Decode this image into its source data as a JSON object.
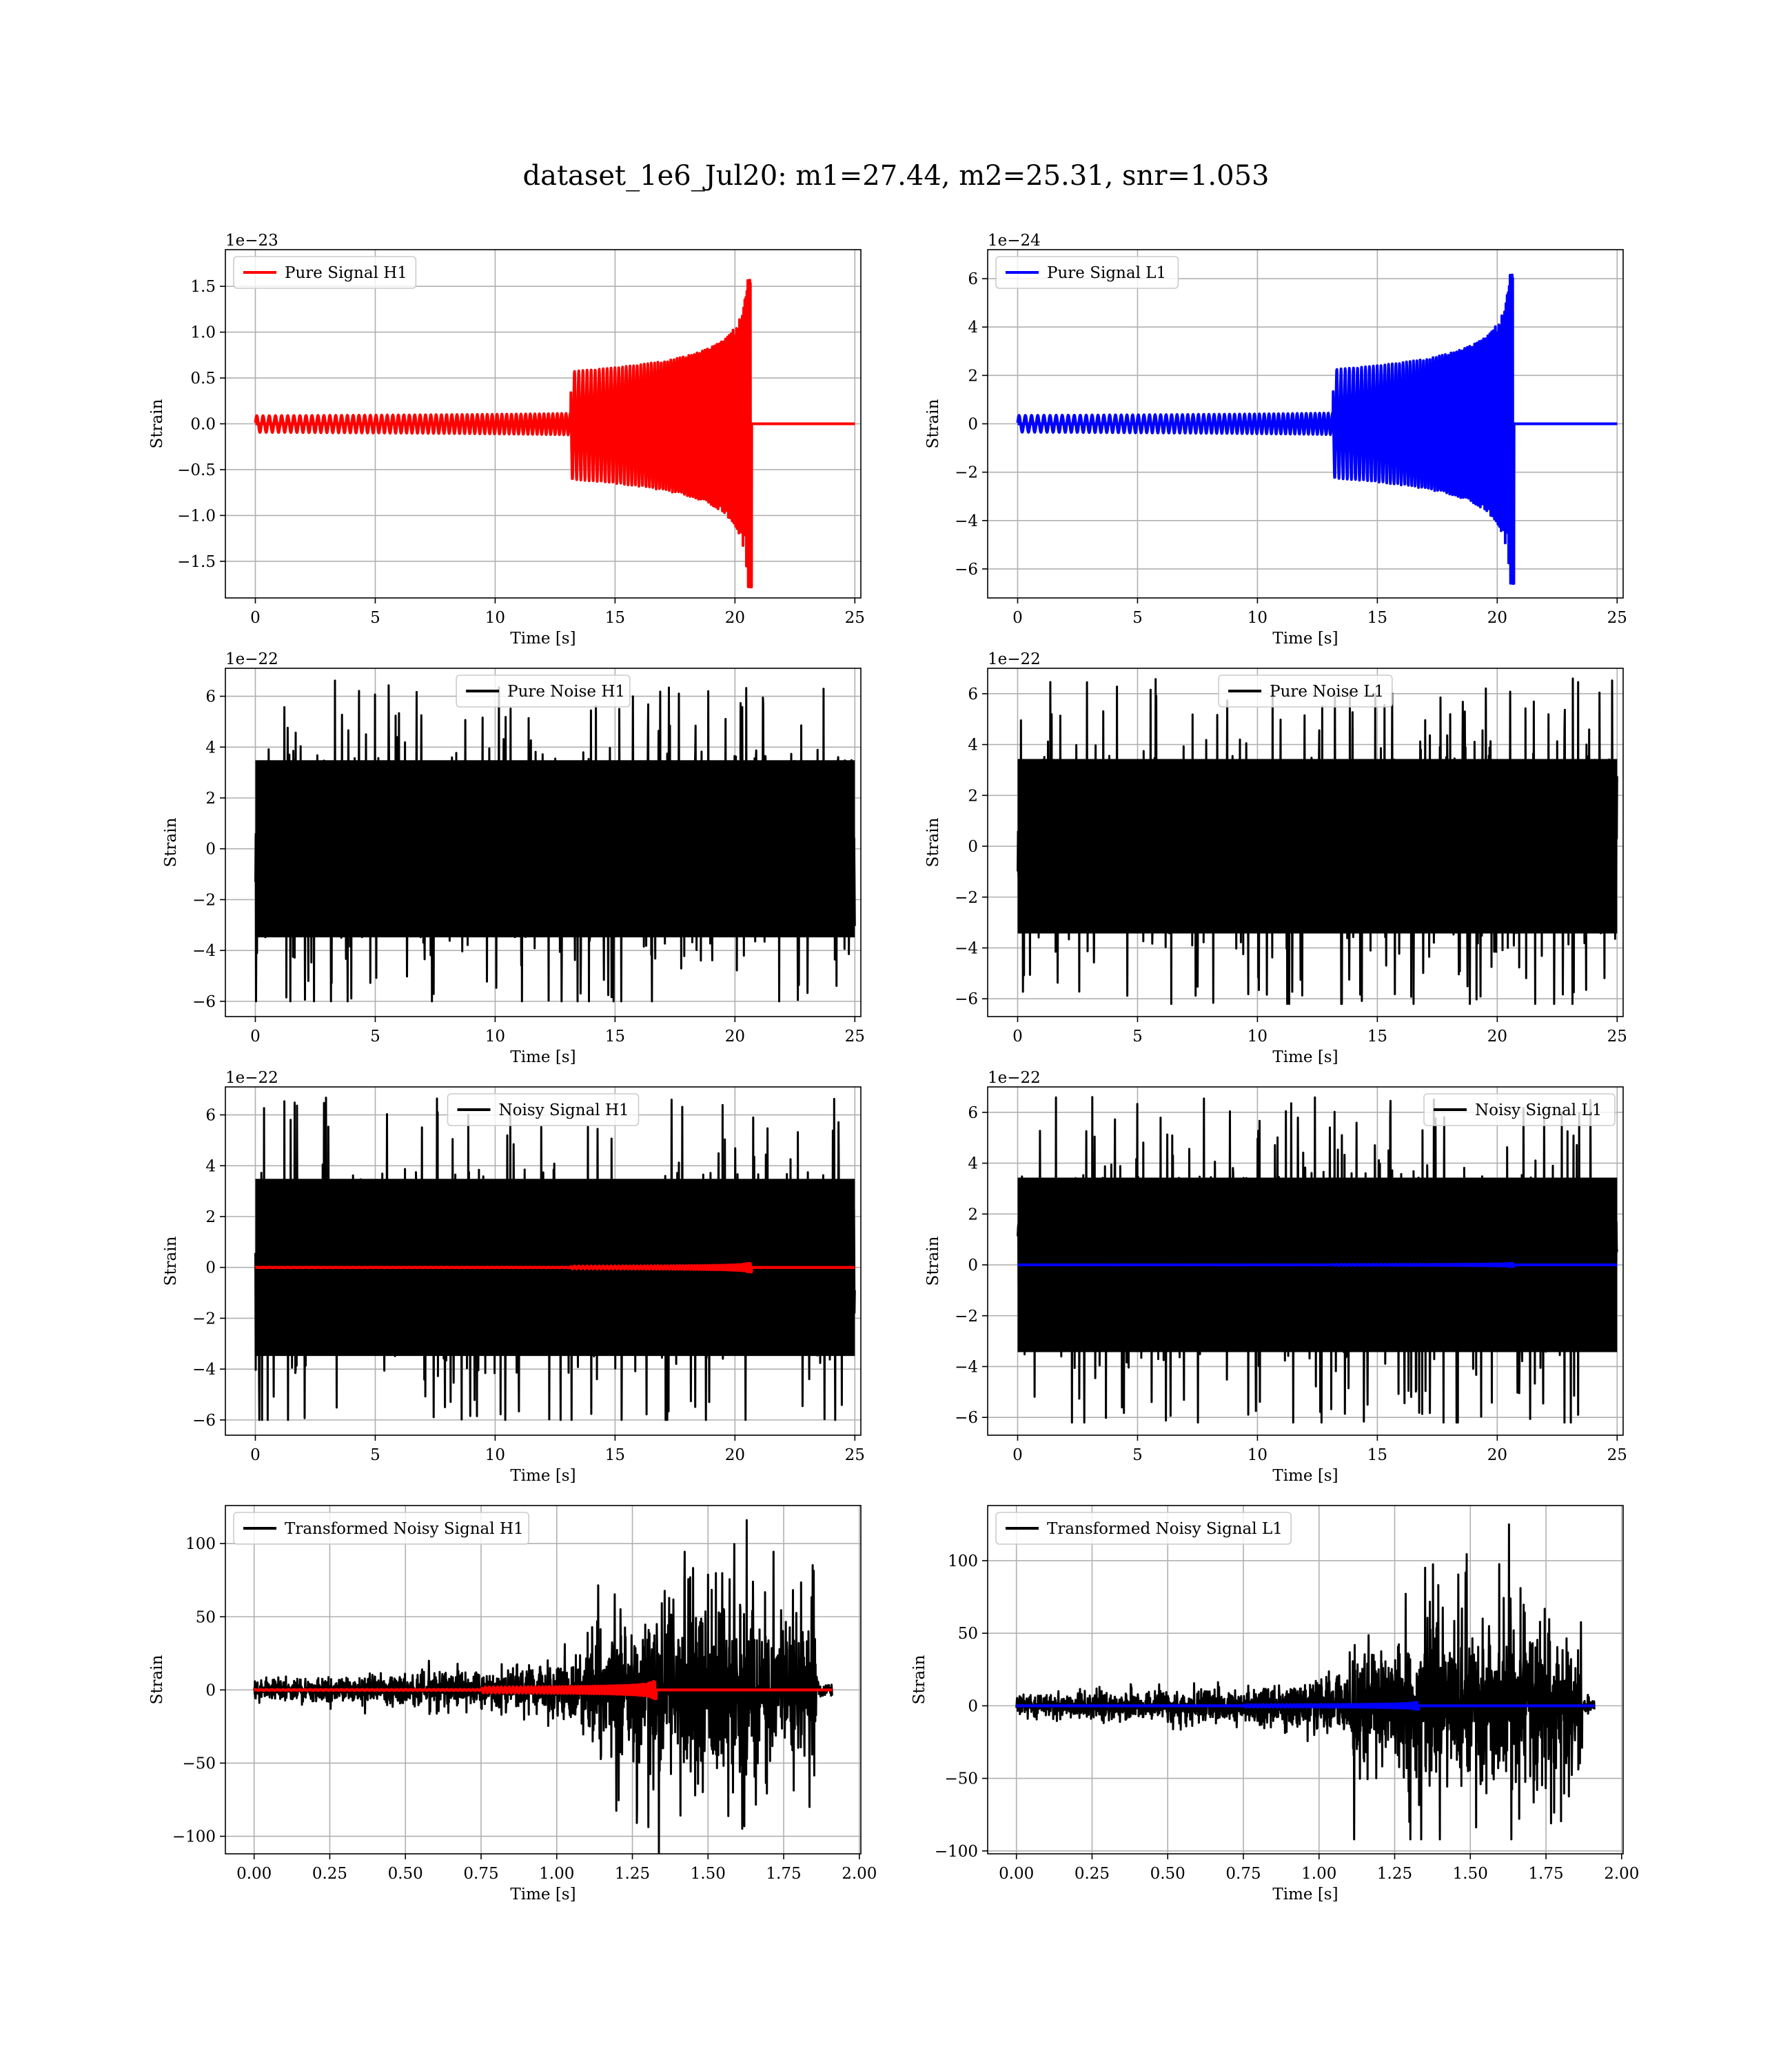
{
  "figure": {
    "title": "dataset_1e6_Jul20: m1=27.44, m2=25.31, snr=1.053"
  },
  "chart_data": [
    {
      "type": "line",
      "id": "pure-signal-h1",
      "ylabel": "Strain",
      "xlabel": "Time [s]",
      "exponent": "1e−23",
      "xlim": [
        -1.25,
        25.25
      ],
      "ylim": [
        -1.9,
        1.9
      ],
      "xticks": [
        0,
        5,
        10,
        15,
        20,
        25
      ],
      "yticks": [
        -1.5,
        -1.0,
        -0.5,
        0.0,
        0.5,
        1.0,
        1.5
      ],
      "ytick_labels": [
        "−1.5",
        "−1.0",
        "−0.5",
        "0.0",
        "0.5",
        "1.0",
        "1.5"
      ],
      "grid": true,
      "legend_position": "upper left",
      "series": [
        {
          "name": "Pure Signal H1",
          "color": "#ff0000",
          "signal": "chirp",
          "t_range": [
            0,
            25
          ],
          "merger": 20.65,
          "peak_pos": 1.68,
          "peak_neg": -1.78,
          "legend": true
        }
      ]
    },
    {
      "type": "line",
      "id": "pure-signal-l1",
      "ylabel": "Strain",
      "xlabel": "Time [s]",
      "exponent": "1e−24",
      "xlim": [
        -1.25,
        25.25
      ],
      "ylim": [
        -7.2,
        7.2
      ],
      "xticks": [
        0,
        5,
        10,
        15,
        20,
        25
      ],
      "yticks": [
        -6,
        -4,
        -2,
        0,
        2,
        4,
        6
      ],
      "ytick_labels": [
        "−6",
        "−4",
        "−2",
        "0",
        "2",
        "4",
        "6"
      ],
      "grid": true,
      "legend_position": "upper left",
      "series": [
        {
          "name": "Pure Signal L1",
          "color": "#0000ff",
          "signal": "chirp",
          "t_range": [
            0,
            25
          ],
          "merger": 20.65,
          "peak_pos": 6.6,
          "peak_neg": -6.6,
          "legend": true
        }
      ]
    },
    {
      "type": "line",
      "id": "pure-noise-h1",
      "ylabel": "Strain",
      "xlabel": "Time [s]",
      "exponent": "1e−22",
      "xlim": [
        -1.25,
        25.25
      ],
      "ylim": [
        -6.6,
        7.1
      ],
      "xticks": [
        0,
        5,
        10,
        15,
        20,
        25
      ],
      "yticks": [
        -6,
        -4,
        -2,
        0,
        2,
        4,
        6
      ],
      "ytick_labels": [
        "−6",
        "−4",
        "−2",
        "0",
        "2",
        "4",
        "6"
      ],
      "grid": true,
      "legend_position": "upper center",
      "series": [
        {
          "name": "Pure Noise H1",
          "color": "#000000",
          "signal": "noise",
          "t_range": [
            0,
            25
          ],
          "spread": 1.0,
          "max": 6.7,
          "min": -6.0,
          "legend": true
        }
      ]
    },
    {
      "type": "line",
      "id": "pure-noise-l1",
      "ylabel": "Strain",
      "xlabel": "Time [s]",
      "exponent": "1e−22",
      "xlim": [
        -1.25,
        25.25
      ],
      "ylim": [
        -6.7,
        7.0
      ],
      "xticks": [
        0,
        5,
        10,
        15,
        20,
        25
      ],
      "yticks": [
        -6,
        -4,
        -2,
        0,
        2,
        4,
        6
      ],
      "ytick_labels": [
        "−6",
        "−4",
        "−2",
        "0",
        "2",
        "4",
        "6"
      ],
      "grid": true,
      "legend_position": "upper center",
      "series": [
        {
          "name": "Pure Noise L1",
          "color": "#000000",
          "signal": "noise",
          "t_range": [
            0,
            25
          ],
          "spread": 1.0,
          "max": 6.6,
          "min": -6.2,
          "legend": true
        }
      ]
    },
    {
      "type": "line",
      "id": "noisy-signal-h1",
      "ylabel": "Strain",
      "xlabel": "Time [s]",
      "exponent": "1e−22",
      "xlim": [
        -1.25,
        25.25
      ],
      "ylim": [
        -6.6,
        7.1
      ],
      "xticks": [
        0,
        5,
        10,
        15,
        20,
        25
      ],
      "yticks": [
        -6,
        -4,
        -2,
        0,
        2,
        4,
        6
      ],
      "ytick_labels": [
        "−6",
        "−4",
        "−2",
        "0",
        "2",
        "4",
        "6"
      ],
      "grid": true,
      "legend_position": "upper center",
      "series": [
        {
          "name": "Noisy Signal H1",
          "color": "#000000",
          "signal": "noise",
          "t_range": [
            0,
            25
          ],
          "spread": 1.0,
          "max": 6.7,
          "min": -6.0,
          "legend": true
        },
        {
          "name": "",
          "color": "#ff0000",
          "signal": "chirp",
          "t_range": [
            0,
            25
          ],
          "merger": 20.65,
          "peak_pos": 0.17,
          "peak_neg": -0.18,
          "legend": false
        }
      ]
    },
    {
      "type": "line",
      "id": "noisy-signal-l1",
      "ylabel": "Strain",
      "xlabel": "Time [s]",
      "exponent": "1e−22",
      "xlim": [
        -1.25,
        25.25
      ],
      "ylim": [
        -6.7,
        7.0
      ],
      "xticks": [
        0,
        5,
        10,
        15,
        20,
        25
      ],
      "yticks": [
        -6,
        -4,
        -2,
        0,
        2,
        4,
        6
      ],
      "ytick_labels": [
        "−6",
        "−4",
        "−2",
        "0",
        "2",
        "4",
        "6"
      ],
      "grid": true,
      "legend_position": "upper right",
      "series": [
        {
          "name": "Noisy Signal L1",
          "color": "#000000",
          "signal": "noise",
          "t_range": [
            0,
            25
          ],
          "spread": 1.0,
          "max": 6.6,
          "min": -6.2,
          "legend": true
        },
        {
          "name": "",
          "color": "#0000ff",
          "signal": "chirp",
          "t_range": [
            0,
            25
          ],
          "merger": 20.65,
          "peak_pos": 0.066,
          "peak_neg": -0.066,
          "legend": false
        }
      ]
    },
    {
      "type": "line",
      "id": "transformed-noisy-signal-h1",
      "ylabel": "Strain",
      "xlabel": "Time [s]",
      "exponent": "",
      "xlim": [
        -0.095,
        2.005
      ],
      "ylim": [
        -112,
        126
      ],
      "xticks": [
        0.0,
        0.25,
        0.5,
        0.75,
        1.0,
        1.25,
        1.5,
        1.75,
        2.0
      ],
      "xtick_labels": [
        "0.00",
        "0.25",
        "0.50",
        "0.75",
        "1.00",
        "1.25",
        "1.50",
        "1.75",
        "2.00"
      ],
      "yticks": [
        -100,
        -50,
        0,
        50,
        100
      ],
      "ytick_labels": [
        "−100",
        "−50",
        "0",
        "50",
        "100"
      ],
      "grid": true,
      "legend_position": "upper left",
      "series": [
        {
          "name": "Transformed Noisy Signal H1",
          "color": "#000000",
          "signal": "whitened",
          "t_range": [
            0,
            1.91
          ],
          "jump": 1.1,
          "end": 1.86,
          "max": 116,
          "min": -112,
          "legend": true
        },
        {
          "name": "",
          "color": "#ff0000",
          "signal": "chirp",
          "t_range": [
            0,
            1.91
          ],
          "merger": 1.325,
          "peak_pos": 6,
          "peak_neg": -6,
          "legend": false
        }
      ]
    },
    {
      "type": "line",
      "id": "transformed-noisy-signal-l1",
      "ylabel": "Strain",
      "xlabel": "Time [s]",
      "exponent": "",
      "xlim": [
        -0.095,
        2.005
      ],
      "ylim": [
        -102,
        138
      ],
      "xticks": [
        0.0,
        0.25,
        0.5,
        0.75,
        1.0,
        1.25,
        1.5,
        1.75,
        2.0
      ],
      "xtick_labels": [
        "0.00",
        "0.25",
        "0.50",
        "0.75",
        "1.00",
        "1.25",
        "1.50",
        "1.75",
        "2.00"
      ],
      "yticks": [
        -100,
        -50,
        0,
        50,
        100
      ],
      "ytick_labels": [
        "−100",
        "−50",
        "0",
        "50",
        "100"
      ],
      "grid": true,
      "legend_position": "upper left",
      "series": [
        {
          "name": "Transformed Noisy Signal L1",
          "color": "#000000",
          "signal": "whitened",
          "t_range": [
            0,
            1.91
          ],
          "jump": 1.1,
          "end": 1.87,
          "max": 125,
          "min": -92,
          "legend": true
        },
        {
          "name": "",
          "color": "#0000ff",
          "signal": "chirp",
          "t_range": [
            0,
            1.91
          ],
          "merger": 1.325,
          "peak_pos": 2.5,
          "peak_neg": -2.5,
          "legend": false
        }
      ]
    }
  ]
}
